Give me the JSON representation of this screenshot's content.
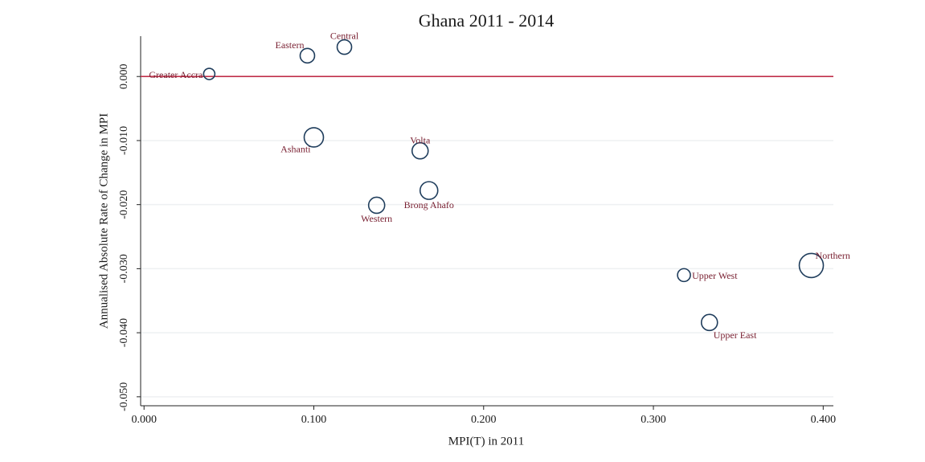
{
  "chart_data": {
    "type": "scatter",
    "title": "Ghana 2011 - 2014",
    "x_label": "MPI(T) in 2011",
    "y_label": "Annualised Absolute Rate of Change in MPI",
    "labels": [
      "Greater Accra",
      "Eastern",
      "Central",
      "Ashanti",
      "Volta",
      "Brong Ahafo",
      "Western",
      "Upper West",
      "Upper East",
      "Northern"
    ],
    "x": [
      0.0384,
      0.0962,
      0.118,
      0.1,
      0.1626,
      0.1678,
      0.137,
      0.318,
      0.333,
      0.393
    ],
    "y": [
      0.0004,
      0.00325,
      0.0046,
      -0.0095,
      -0.0116,
      -0.0178,
      -0.0201,
      -0.031,
      -0.0384,
      -0.0295
    ],
    "sizes": [
      7,
      9,
      9,
      12,
      10,
      11,
      10,
      8,
      10,
      15
    ],
    "marker_color": "#1f3d5c",
    "label_color": "#7a2233",
    "hline": 0,
    "hline_color": "#c0304a",
    "xlim": [
      -0.002,
      0.406
    ],
    "ylim": [
      -0.0514,
      0.0063
    ],
    "xticks": [
      {
        "value": 0,
        "label": "0.000"
      },
      {
        "value": 0.1,
        "label": "0.100"
      },
      {
        "value": 0.2,
        "label": "0.200"
      },
      {
        "value": 0.3,
        "label": "0.300"
      },
      {
        "value": 0.4,
        "label": "0.400"
      }
    ],
    "yticks": [
      {
        "value": -0.05,
        "label": "-0.050"
      },
      {
        "value": -0.04,
        "label": "-0.040"
      },
      {
        "value": -0.03,
        "label": "-0.030"
      },
      {
        "value": -0.02,
        "label": "-0.020"
      },
      {
        "value": -0.01,
        "label": "-0.010"
      },
      {
        "value": 0,
        "label": "0.000"
      }
    ],
    "grid": true
  }
}
